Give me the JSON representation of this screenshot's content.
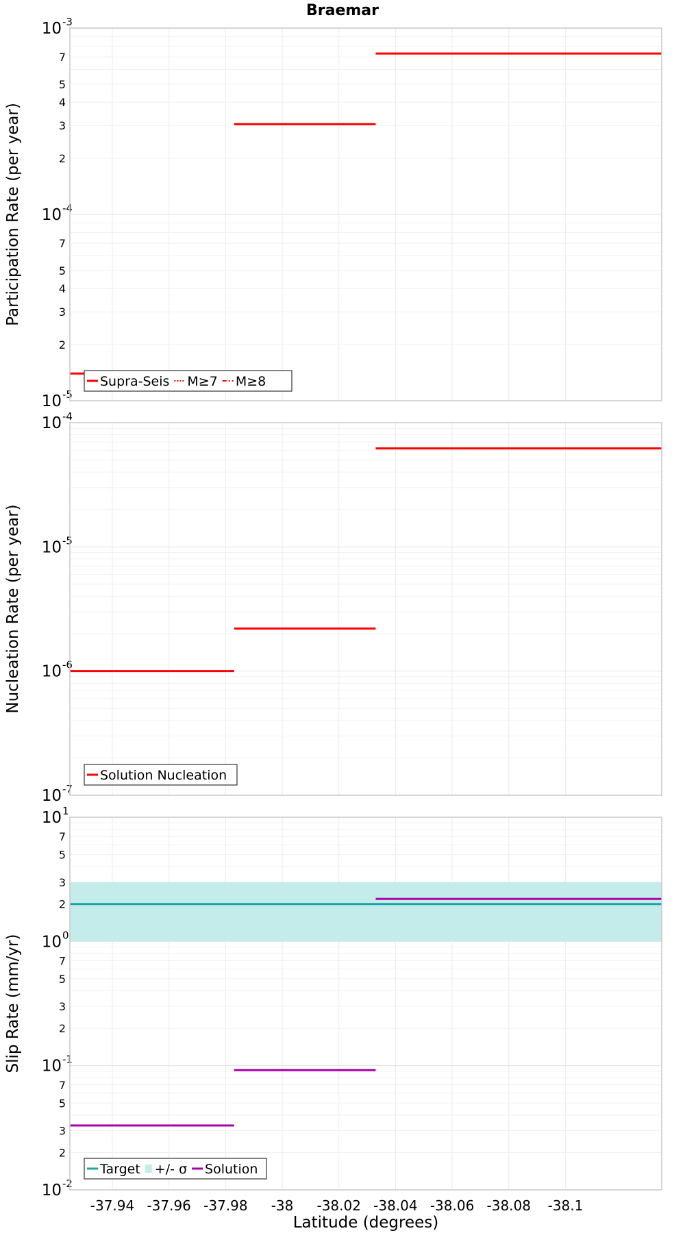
{
  "title": "Braemar",
  "chart_data": [
    {
      "type": "line",
      "ylabel": "Participation Rate (per year)",
      "yscale": "log",
      "ylim": [
        1e-05,
        0.001
      ],
      "xlim": [
        -37.925,
        -38.134
      ],
      "series": [
        {
          "name": "Supra-Seis",
          "color": "#ff0000",
          "style": "solid",
          "segments": [
            {
              "x": [
                -37.925,
                -37.983
              ],
              "y": 1.4e-05
            },
            {
              "x": [
                -37.983,
                -38.033
              ],
              "y": 0.000305
            },
            {
              "x": [
                -38.033,
                -38.134
              ],
              "y": 0.00073
            }
          ]
        },
        {
          "name": "M≥7",
          "color": "#ff0000",
          "style": "dotted",
          "segments": [
            {
              "x": [
                -37.983,
                -38.033
              ],
              "y": 0.000305
            },
            {
              "x": [
                -38.033,
                -38.134
              ],
              "y": 0.00073
            }
          ]
        },
        {
          "name": "M≥8",
          "color": "#ff0000",
          "style": "dashdot",
          "segments": []
        }
      ],
      "legend": {
        "position": "bottom-left"
      }
    },
    {
      "type": "line",
      "ylabel": "Nucleation Rate (per year)",
      "yscale": "log",
      "ylim": [
        1e-07,
        0.0001
      ],
      "xlim": [
        -37.925,
        -38.134
      ],
      "series": [
        {
          "name": "Solution Nucleation",
          "color": "#ff0000",
          "style": "solid",
          "segments": [
            {
              "x": [
                -37.925,
                -37.983
              ],
              "y": 1e-06
            },
            {
              "x": [
                -37.983,
                -38.033
              ],
              "y": 2.2e-06
            },
            {
              "x": [
                -38.033,
                -38.134
              ],
              "y": 6.2e-05
            }
          ]
        }
      ],
      "legend": {
        "position": "bottom-left"
      }
    },
    {
      "type": "line",
      "ylabel": "Slip Rate (mm/yr)",
      "xlabel": "Latitude (degrees)",
      "yscale": "log",
      "ylim": [
        0.01,
        10
      ],
      "xlim": [
        -37.925,
        -38.134
      ],
      "xticks": [
        -37.94,
        -37.96,
        -37.98,
        -38,
        -38.02,
        -38.04,
        -38.06,
        -38.08,
        -38.1
      ],
      "xtick_labels": [
        "-37.94",
        "-37.96",
        "-37.98",
        "-38",
        "-38.02",
        "-38.04",
        "-38.06",
        "-38.08",
        "-38.1"
      ],
      "band": {
        "name": "+/- σ",
        "color": "#c4ecea",
        "ymin": 1.0,
        "ymax": 3.0
      },
      "series": [
        {
          "name": "Target",
          "color": "#1aa5a5",
          "style": "solid",
          "segments": [
            {
              "x": [
                -37.925,
                -38.134
              ],
              "y": 2.0
            }
          ]
        },
        {
          "name": "Solution",
          "color": "#aa00aa",
          "style": "solid",
          "segments": [
            {
              "x": [
                -37.925,
                -37.983
              ],
              "y": 0.033
            },
            {
              "x": [
                -37.983,
                -38.033
              ],
              "y": 0.092
            },
            {
              "x": [
                -38.033,
                -38.134
              ],
              "y": 2.2
            }
          ]
        }
      ],
      "legend": {
        "position": "bottom-left"
      }
    }
  ]
}
